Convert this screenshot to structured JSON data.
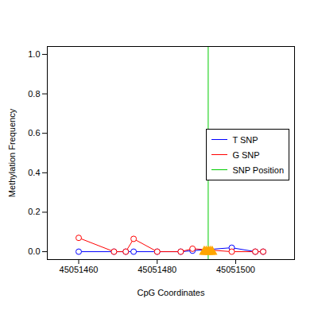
{
  "chart_data": {
    "type": "line",
    "x_label": "CpG Coordinates",
    "y_label": "Methylation Frequency",
    "xlim": [
      45051452,
      45051515
    ],
    "xticks": [
      45051460,
      45051480,
      45051500
    ],
    "ylim": [
      -0.04,
      1.04
    ],
    "yticks": [
      {
        "value": 0,
        "label": "0.0"
      },
      {
        "value": 0.2,
        "label": "0.2"
      },
      {
        "value": 0.4,
        "label": "0.4"
      },
      {
        "value": 0.6,
        "label": "0.6"
      },
      {
        "value": 0.8,
        "label": "0.8"
      },
      {
        "value": 1,
        "label": "1.0"
      }
    ],
    "grid": false,
    "legend": "right",
    "x": [
      45051460,
      45051469,
      45051472,
      45051474,
      45051480,
      45051486,
      45051489,
      45051499,
      45051505,
      45051507
    ],
    "series": [
      {
        "name": "T SNP",
        "color": "#0000ff",
        "marker": "open circle",
        "values": [
          0,
          0,
          0,
          0,
          0,
          0,
          0.005,
          0.02,
          0,
          0
        ]
      },
      {
        "name": "G SNP",
        "color": "#ff0000",
        "marker": "open circle",
        "values": [
          0.07,
          0,
          0,
          0.065,
          0,
          0,
          0.015,
          0,
          0,
          0
        ]
      }
    ],
    "snp_position": {
      "name": "SNP Position",
      "color": "#00cc00",
      "value": 45051493
    },
    "snp_marks": {
      "x": [
        45051492,
        45051492.5,
        45051493,
        45051493.5,
        45051494
      ],
      "y": [
        0,
        0,
        0,
        0,
        0
      ],
      "color": "orange",
      "marker": "triangle"
    }
  }
}
